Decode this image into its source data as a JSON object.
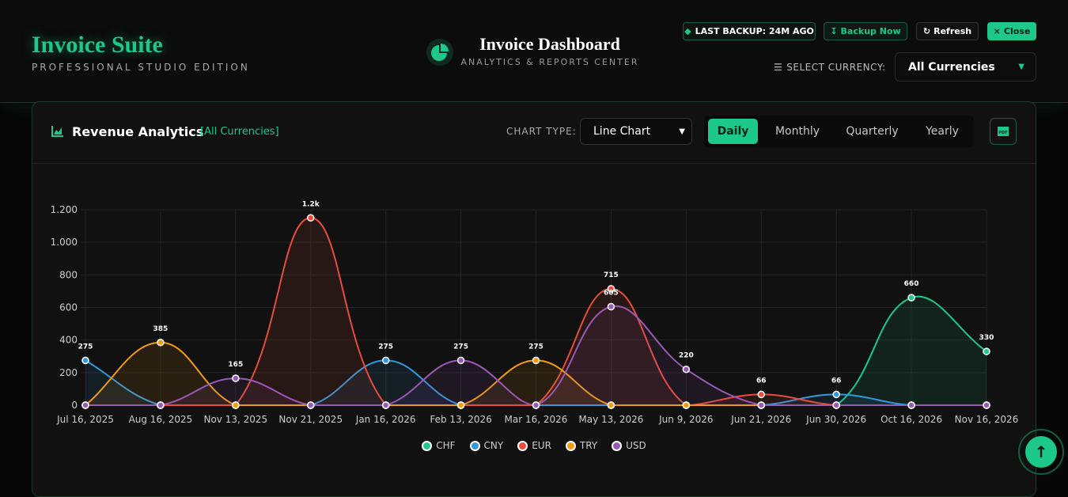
{
  "header": {
    "brand": "Invoice Suite",
    "edition": "PROFESSIONAL STUDIO EDITION",
    "title": "Invoice Dashboard",
    "subtitle": "ANALYTICS & REPORTS CENTER",
    "backup_status": "LAST BACKUP: 24M AGO",
    "buttons": [
      "Backup Now",
      "Refresh",
      "Close"
    ],
    "currency_label": "SELECT CURRENCY:",
    "currency_value": "All Currencies"
  },
  "panel": {
    "title": "Revenue Analytics",
    "filter": "[All Currencies]",
    "chart_type_label": "CHART TYPE:",
    "chart_type_value": "Line Chart",
    "periods": [
      "Daily",
      "Monthly",
      "Quarterly",
      "Yearly"
    ],
    "active_period": "Daily",
    "export": "PDF"
  },
  "chart_data": {
    "type": "line",
    "categories": [
      "Jul 16, 2025",
      "Aug 16, 2025",
      "Nov 13, 2025",
      "Nov 21, 2025",
      "Jan 16, 2026",
      "Feb 13, 2026",
      "Mar 16, 2026",
      "May 13, 2026",
      "Jun 9, 2026",
      "Jun 21, 2026",
      "Jun 30, 2026",
      "Oct 16, 2026",
      "Nov 16, 2026"
    ],
    "series": [
      {
        "name": "CHF",
        "color": "#1cc88a",
        "values": [
          0,
          0,
          0,
          0,
          0,
          0,
          0,
          0,
          0,
          0,
          0,
          660,
          330
        ],
        "value_labels": [
          null,
          null,
          null,
          null,
          null,
          null,
          null,
          null,
          null,
          null,
          null,
          "660",
          "330"
        ]
      },
      {
        "name": "CNY",
        "color": "#3498db",
        "values": [
          275,
          0,
          0,
          0,
          275,
          0,
          0,
          0,
          0,
          0,
          66,
          0,
          0
        ],
        "value_labels": [
          "275",
          null,
          null,
          null,
          "275",
          null,
          null,
          null,
          null,
          null,
          "66",
          null,
          null
        ]
      },
      {
        "name": "EUR",
        "color": "#e74c3c",
        "values": [
          0,
          0,
          0,
          1150,
          0,
          0,
          0,
          715,
          0,
          66,
          0,
          0,
          0
        ],
        "value_labels": [
          null,
          null,
          null,
          "1.2k",
          null,
          null,
          null,
          "715",
          null,
          "66",
          null,
          null,
          null
        ]
      },
      {
        "name": "TRY",
        "color": "#f39c12",
        "values": [
          0,
          385,
          0,
          0,
          0,
          0,
          275,
          0,
          0,
          0,
          0,
          0,
          0
        ],
        "value_labels": [
          null,
          "385",
          null,
          null,
          null,
          null,
          "275",
          null,
          null,
          null,
          null,
          null,
          null
        ]
      },
      {
        "name": "USD",
        "color": "#9b59b6",
        "values": [
          0,
          0,
          165,
          0,
          0,
          275,
          0,
          605,
          220,
          0,
          0,
          0,
          0
        ],
        "value_labels": [
          null,
          null,
          "165",
          null,
          null,
          "275",
          null,
          "605",
          "220",
          null,
          null,
          null,
          null
        ]
      }
    ],
    "ylim": [
      0,
      1200
    ],
    "yticks": [
      0,
      200,
      400,
      600,
      800,
      {
        "value": 1000,
        "label": "1.000"
      },
      {
        "value": 1200,
        "label": "1.200"
      }
    ],
    "grid": true,
    "legend": "bottom"
  }
}
